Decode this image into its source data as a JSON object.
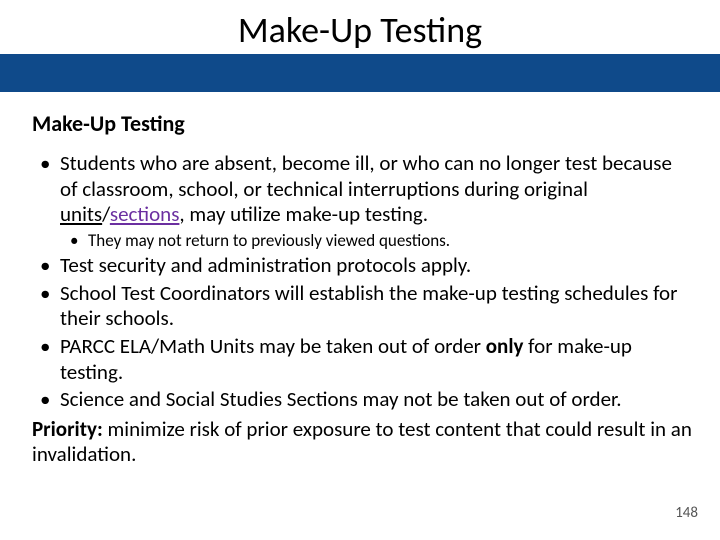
{
  "colors": {
    "band": "#0f4a8a",
    "purple": "#6b2fa0",
    "text": "#000000",
    "background": "#ffffff",
    "page_num": "#555555"
  },
  "typography": {
    "title_fontsize": 36,
    "heading_fontsize": 22,
    "body_fontsize": 21,
    "sub_fontsize": 17,
    "pagenum_fontsize": 15,
    "font_family": "Calibri"
  },
  "slide": {
    "title": "Make-Up Testing",
    "section_heading": "Make-Up Testing",
    "bullets": [
      {
        "segments": [
          {
            "t": "Students who are absent, become ill, or who can no longer test because of classroom, school, or technical interruptions during original "
          },
          {
            "t": "units",
            "underline": true
          },
          {
            "t": "/"
          },
          {
            "t": "sections",
            "underline": true,
            "purple": true
          },
          {
            "t": ", may utilize make-up testing."
          }
        ],
        "sub": [
          {
            "segments": [
              {
                "t": "They may not return to previously viewed questions."
              }
            ]
          }
        ]
      },
      {
        "segments": [
          {
            "t": "Test security and administration protocols apply."
          }
        ]
      },
      {
        "segments": [
          {
            "t": "School Test Coordinators will establish the make-up testing schedules for their schools."
          }
        ]
      },
      {
        "segments": [
          {
            "t": "PARCC ELA/Math Units may be taken out of order "
          },
          {
            "t": "only",
            "bold": true
          },
          {
            "t": " for make-up testing."
          }
        ]
      },
      {
        "segments": [
          {
            "t": "Science and Social Studies Sections may not be taken out of order."
          }
        ]
      }
    ],
    "priority": {
      "label": "Priority:",
      "text": " minimize risk of prior exposure to test content that could result in an invalidation."
    },
    "page_number": "148"
  }
}
